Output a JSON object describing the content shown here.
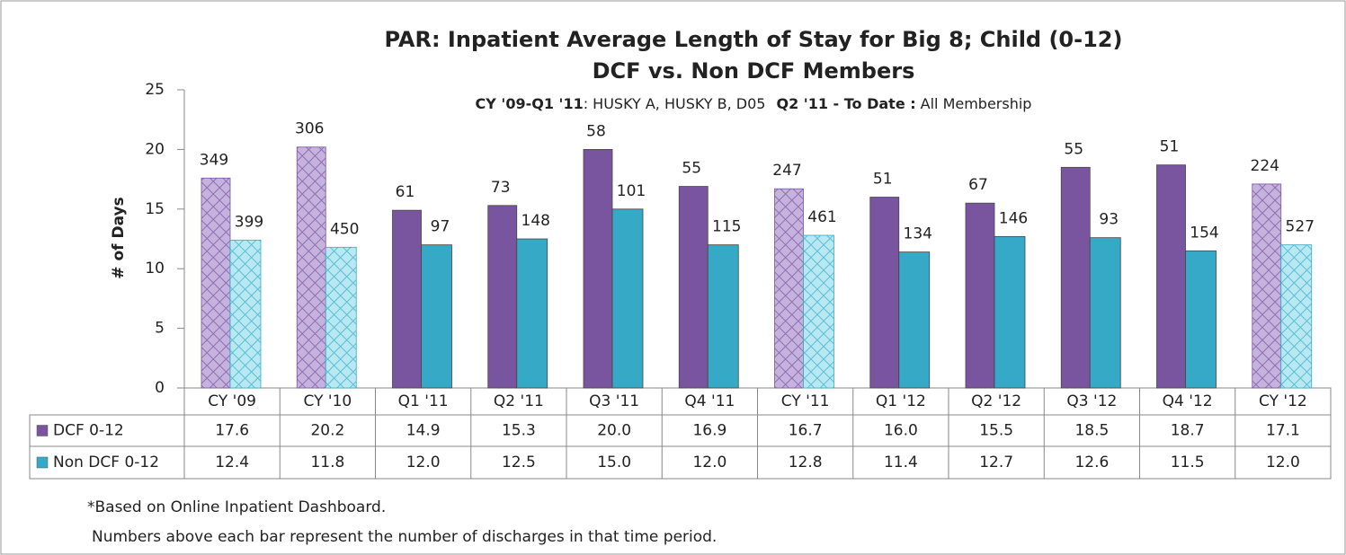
{
  "chart_data": {
    "type": "bar",
    "title": "PAR: Inpatient Average Length of Stay for Big 8; Child (0-12)",
    "title_line2": "DCF vs. Non DCF Members",
    "subtitle": [
      {
        "text": "CY '09-Q1 '11",
        "bold": true
      },
      {
        "text": ": HUSKY A, HUSKY B, D05",
        "bold": false
      },
      {
        "text": "Q2 '11 - To Date :",
        "bold": true
      },
      {
        "text": "All Membership",
        "bold": false
      }
    ],
    "ylabel": "# of Days",
    "categories": [
      "CY '09",
      "CY '10",
      "Q1 '11",
      "Q2 '11",
      "Q3 '11",
      "Q4 '11",
      "CY '11",
      "Q1 '12",
      "Q2 '12",
      "Q3 '12",
      "Q4 '12",
      "CY '12"
    ],
    "pattern": [
      true,
      true,
      false,
      false,
      false,
      false,
      true,
      false,
      false,
      false,
      false,
      true
    ],
    "series": [
      {
        "name": "DCF 0-12",
        "color": "#7a559f",
        "light_color": "#c5b2dd",
        "values": [
          17.6,
          20.2,
          14.9,
          15.3,
          20.0,
          16.9,
          16.7,
          16.0,
          15.5,
          18.5,
          18.7,
          17.1
        ],
        "value_labels": [
          "17.6",
          "20.2",
          "14.9",
          "15.3",
          "20.0",
          "16.9",
          "16.7",
          "16.0",
          "15.5",
          "18.5",
          "18.7",
          "17.1"
        ],
        "discharges": [
          349,
          306,
          61,
          73,
          58,
          55,
          247,
          51,
          67,
          55,
          51,
          224
        ]
      },
      {
        "name": "Non DCF 0-12",
        "color": "#36a9c6",
        "light_color": "#a9e0ec",
        "values": [
          12.4,
          11.8,
          12.0,
          12.5,
          15.0,
          12.0,
          12.8,
          11.4,
          12.7,
          12.6,
          11.5,
          12.0
        ],
        "value_labels": [
          "12.4",
          "11.8",
          "12.0",
          "12.5",
          "15.0",
          "12.0",
          "12.8",
          "11.4",
          "12.7",
          "12.6",
          "11.5",
          "12.0"
        ],
        "discharges": [
          399,
          450,
          97,
          148,
          101,
          115,
          461,
          134,
          146,
          93,
          154,
          527
        ]
      }
    ],
    "ylim": [
      0,
      25
    ],
    "yticks": [
      0,
      5,
      10,
      15,
      20,
      25
    ],
    "grid": false,
    "notes": [
      "*Based on Online Inpatient Dashboard.",
      "Numbers above each bar represent the number of discharges in that time period."
    ]
  }
}
